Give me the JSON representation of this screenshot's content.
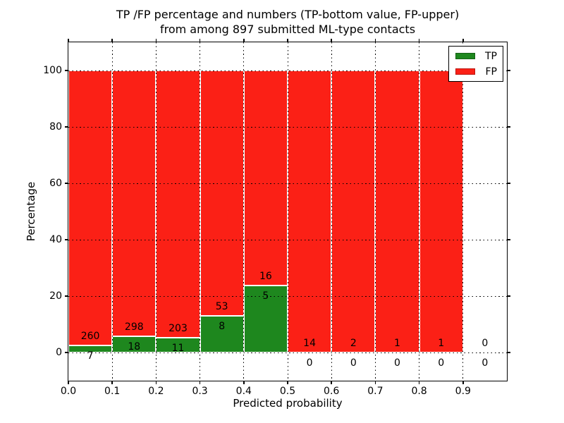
{
  "chart_data": {
    "type": "bar",
    "stacked": true,
    "title_line1": "TP /FP percentage and numbers (TP-bottom value, FP-upper)",
    "title_line2": "from among 897 submitted ML-type contacts",
    "total_contacts": 897,
    "xlabel": "Predicted probability",
    "ylabel": "Percentage",
    "xlim": [
      0.0,
      1.0
    ],
    "ylim": [
      -10,
      110
    ],
    "bin_edges": [
      0.0,
      0.1,
      0.2,
      0.3,
      0.4,
      0.5,
      0.6,
      0.7,
      0.8,
      0.9,
      1.0
    ],
    "x_tick_labels": [
      "0.0",
      "0.1",
      "0.2",
      "0.3",
      "0.4",
      "0.5",
      "0.6",
      "0.7",
      "0.8",
      "0.9"
    ],
    "x_tick_values": [
      0.0,
      0.1,
      0.2,
      0.3,
      0.4,
      0.5,
      0.6,
      0.7,
      0.8,
      0.9
    ],
    "y_tick_labels": [
      "0",
      "20",
      "40",
      "60",
      "80",
      "100"
    ],
    "y_tick_values": [
      0,
      20,
      40,
      60,
      80,
      100
    ],
    "grid": "dotted",
    "grid_color": "#000000",
    "series": [
      {
        "name": "TP",
        "color": "#1e871e",
        "edge_color": "#ffffff",
        "counts": [
          7,
          18,
          11,
          8,
          5,
          0,
          0,
          0,
          0,
          0
        ]
      },
      {
        "name": "FP",
        "color": "#fb2016",
        "edge_color": "#ffffff",
        "counts": [
          260,
          298,
          203,
          53,
          16,
          14,
          2,
          1,
          1,
          0
        ]
      }
    ],
    "tp_percent_of_bin": [
      2.62,
      5.7,
      5.14,
      13.11,
      23.81,
      0.0,
      0.0,
      0.0,
      0.0,
      null
    ],
    "legend": {
      "position": "upper right",
      "entries": [
        "TP",
        "FP"
      ]
    }
  }
}
